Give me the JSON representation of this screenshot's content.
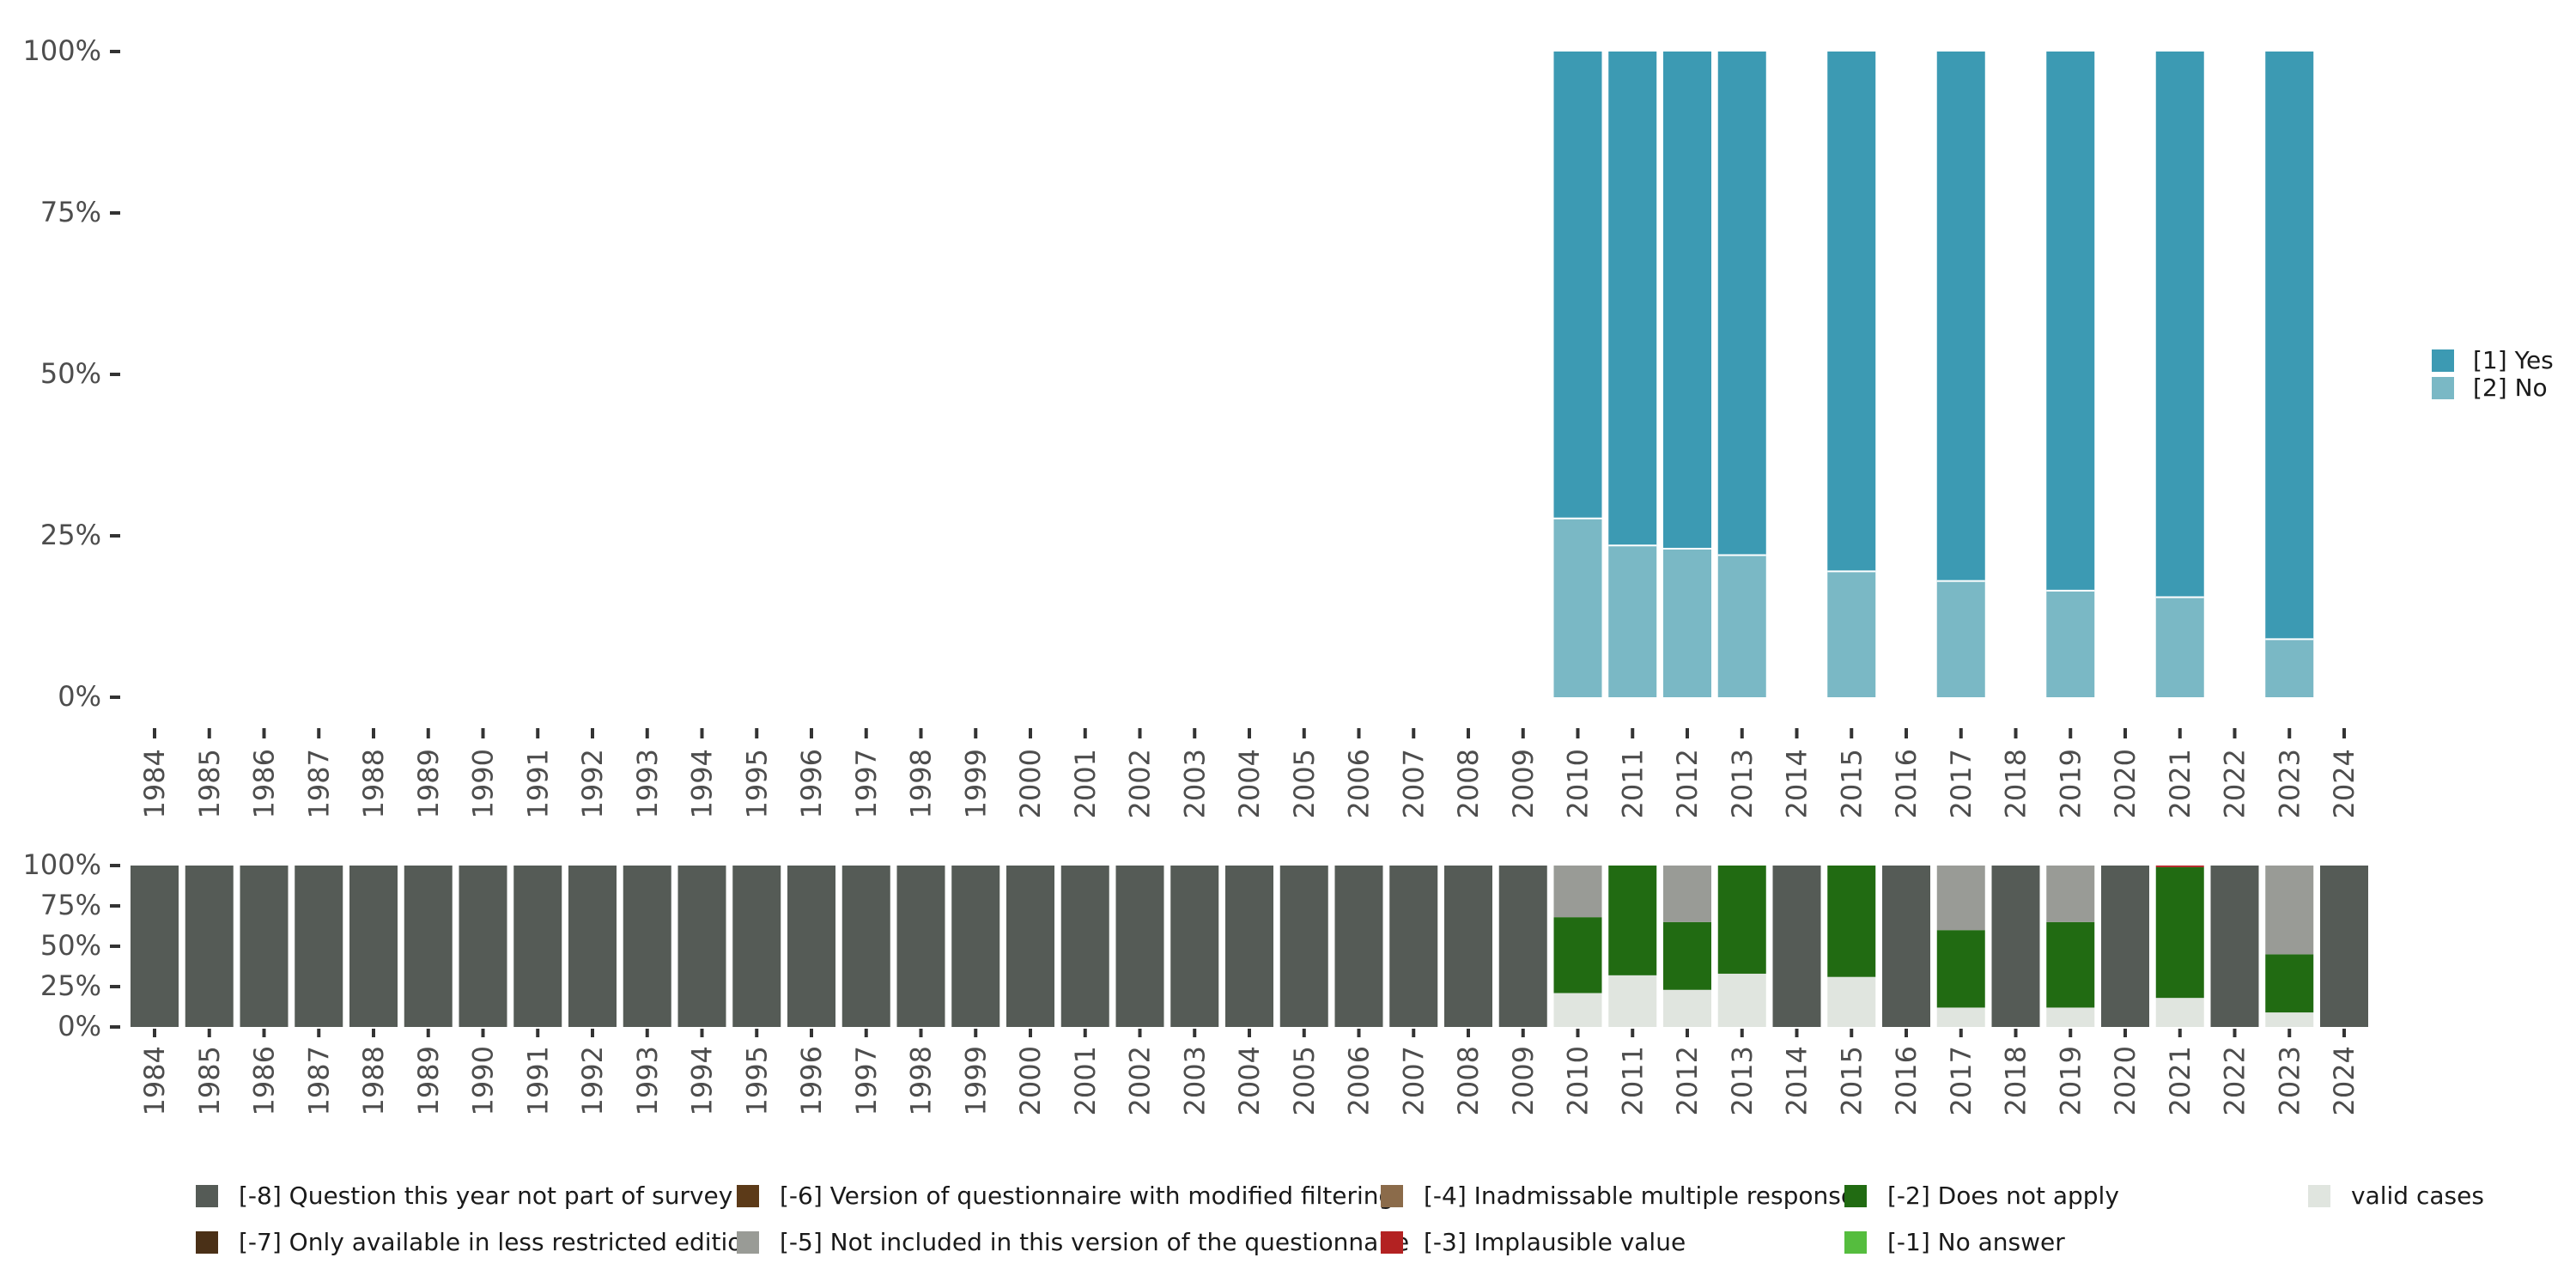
{
  "chart_data": [
    {
      "type": "bar",
      "stacked": true,
      "categories": [
        "1984",
        "1985",
        "1986",
        "1987",
        "1988",
        "1989",
        "1990",
        "1991",
        "1992",
        "1993",
        "1994",
        "1995",
        "1996",
        "1997",
        "1998",
        "1999",
        "2000",
        "2001",
        "2002",
        "2003",
        "2004",
        "2005",
        "2006",
        "2007",
        "2008",
        "2009",
        "2010",
        "2011",
        "2012",
        "2013",
        "2014",
        "2015",
        "2016",
        "2017",
        "2018",
        "2019",
        "2020",
        "2021",
        "2022",
        "2023",
        "2024"
      ],
      "bars": [
        {
          "x": "2010",
          "yes": 72.3,
          "no": 27.7
        },
        {
          "x": "2011",
          "yes": 76.5,
          "no": 23.5
        },
        {
          "x": "2012",
          "yes": 77.0,
          "no": 23.0
        },
        {
          "x": "2013",
          "yes": 78.0,
          "no": 22.0
        },
        {
          "x": "2015",
          "yes": 80.5,
          "no": 19.5
        },
        {
          "x": "2017",
          "yes": 82.0,
          "no": 18.0
        },
        {
          "x": "2019",
          "yes": 83.5,
          "no": 16.5
        },
        {
          "x": "2021",
          "yes": 84.5,
          "no": 15.5
        },
        {
          "x": "2023",
          "yes": 91.0,
          "no": 9.0
        }
      ],
      "series": [
        {
          "name": "[1] Yes",
          "key": "yes",
          "color": "#3c9ab3"
        },
        {
          "name": "[2] No",
          "key": "no",
          "color": "#7ab8c5"
        }
      ],
      "yticks": [
        "0%",
        "25%",
        "50%",
        "75%",
        "100%"
      ],
      "ylim": [
        0,
        100
      ],
      "legend_position": "right"
    },
    {
      "type": "bar",
      "stacked": true,
      "categories": [
        "1984",
        "1985",
        "1986",
        "1987",
        "1988",
        "1989",
        "1990",
        "1991",
        "1992",
        "1993",
        "1994",
        "1995",
        "1996",
        "1997",
        "1998",
        "1999",
        "2000",
        "2001",
        "2002",
        "2003",
        "2004",
        "2005",
        "2006",
        "2007",
        "2008",
        "2009",
        "2010",
        "2011",
        "2012",
        "2013",
        "2014",
        "2015",
        "2016",
        "2017",
        "2018",
        "2019",
        "2020",
        "2021",
        "2022",
        "2023",
        "2024"
      ],
      "missing_year_value": {
        "m8": 100
      },
      "bars": [
        {
          "x": "2010",
          "valid": 21,
          "m2": 47,
          "m5": 32
        },
        {
          "x": "2011",
          "valid": 32,
          "m2": 68
        },
        {
          "x": "2012",
          "valid": 23,
          "m2": 42,
          "m5": 35
        },
        {
          "x": "2013",
          "valid": 33,
          "m2": 67
        },
        {
          "x": "2015",
          "valid": 31,
          "m2": 69
        },
        {
          "x": "2017",
          "valid": 12,
          "m2": 48,
          "m5": 40
        },
        {
          "x": "2019",
          "valid": 12,
          "m2": 53,
          "m5": 35
        },
        {
          "x": "2021",
          "valid": 18,
          "m2": 81,
          "m3": 1
        },
        {
          "x": "2023",
          "valid": 9,
          "m2": 36,
          "m5": 55
        }
      ],
      "stack_order": [
        "valid",
        "m1",
        "m2",
        "m3",
        "m4",
        "m5",
        "m6",
        "m7",
        "m8"
      ],
      "series": [
        {
          "name": "[-8] Question this year not part of survey",
          "key": "m8",
          "color": "#555b56"
        },
        {
          "name": "[-7] Only available in less restricted edition",
          "key": "m7",
          "color": "#4a3017"
        },
        {
          "name": "[-6] Version of questionnaire with modified filtering",
          "key": "m6",
          "color": "#5c3a18"
        },
        {
          "name": "[-5] Not included in this version of the questionnaire",
          "key": "m5",
          "color": "#999b96"
        },
        {
          "name": "[-4] Inadmissable multiple response",
          "key": "m4",
          "color": "#8b6b4a"
        },
        {
          "name": "[-3] Implausible value",
          "key": "m3",
          "color": "#b32222"
        },
        {
          "name": "[-2] Does not apply",
          "key": "m2",
          "color": "#216b12"
        },
        {
          "name": "[-1] No answer",
          "key": "m1",
          "color": "#55bd3e"
        },
        {
          "name": "valid cases",
          "key": "valid",
          "color": "#e0e5df"
        }
      ],
      "yticks": [
        "0%",
        "25%",
        "50%",
        "75%",
        "100%"
      ],
      "ylim": [
        0,
        100
      ],
      "legend_position": "bottom"
    }
  ]
}
